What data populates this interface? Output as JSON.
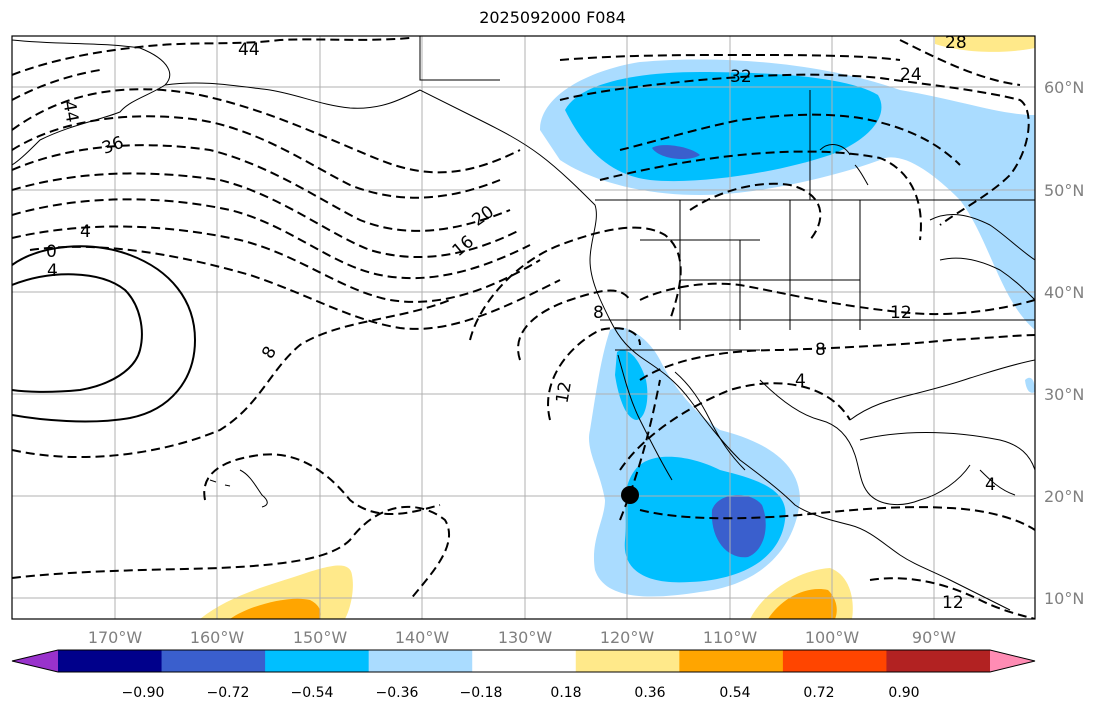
{
  "title": "2025092000 F084",
  "lon_labels": [
    "170°W",
    "160°W",
    "150°W",
    "140°W",
    "130°W",
    "120°W",
    "110°W",
    "100°W",
    "90°W"
  ],
  "lat_labels": [
    "60°N",
    "50°N",
    "40°N",
    "30°N",
    "20°N",
    "10°N"
  ],
  "contour_labels": [
    "44",
    "44",
    "36",
    "4",
    "0",
    "4",
    "8",
    "20",
    "16",
    "8",
    "12",
    "32",
    "24",
    "28",
    "8",
    "4",
    "12",
    "12",
    "4"
  ],
  "colorbar": {
    "ticks": [
      "−0.90",
      "−0.72",
      "−0.54",
      "−0.36",
      "−0.18",
      "0.18",
      "0.36",
      "0.54",
      "0.72",
      "0.90"
    ],
    "colors": [
      "#9932cc",
      "#00008b",
      "#3a5fcd",
      "#00bfff",
      "#aadcff",
      "#ffffff",
      "#ffe98a",
      "#ffa500",
      "#ff4500",
      "#b22222",
      "#ff8cb4"
    ]
  },
  "marker": {
    "lon": -120,
    "lat": 20
  }
}
